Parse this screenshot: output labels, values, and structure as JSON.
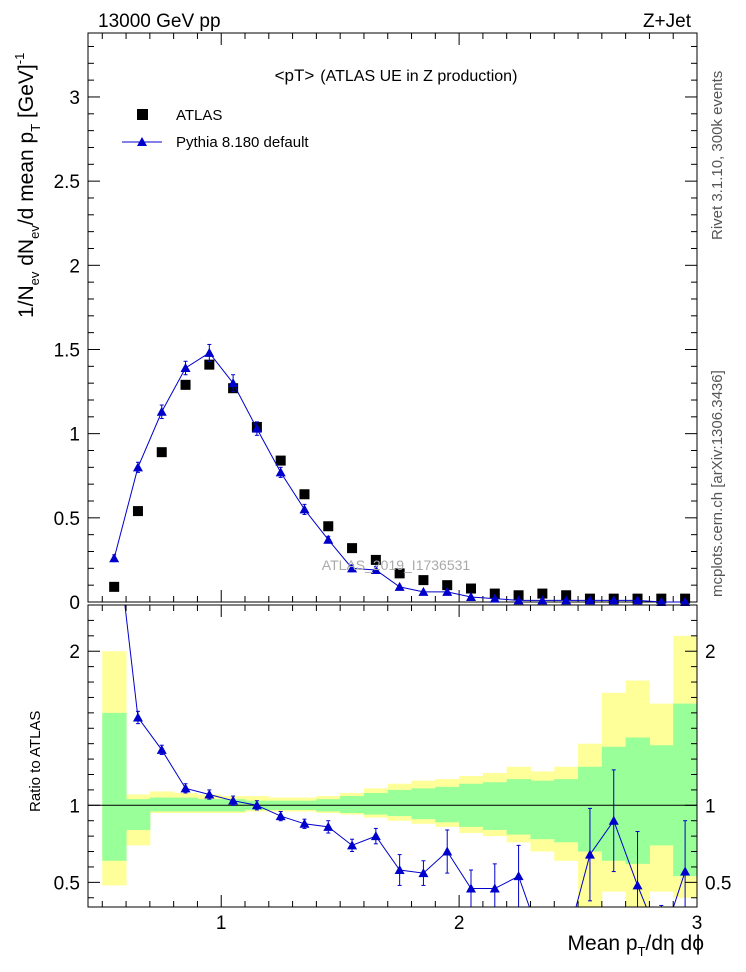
{
  "header": {
    "left": "13000 GeV pp",
    "right": "Z+Jet",
    "rivet_note": "Rivet 3.1.10,  300k events",
    "mcplots_note": "mcplots.cern.ch [arXiv:1306.3436]"
  },
  "watermark": "ATLAS_2019_I1736531",
  "colors": {
    "data": "#000000",
    "mc": "#0000cc",
    "band_outer": "#ffff99",
    "band_inner": "#99ff99"
  },
  "chart_data": [
    {
      "type": "scatter",
      "panel": "main",
      "title": "<pT>",
      "subtitle": "(ATLAS UE in Z production)",
      "ylabel_parts": {
        "a": "1/N",
        "b": "ev",
        "c": " dN",
        "d": "ev",
        "e": "/d mean p",
        "f": "T",
        "g": " [GeV]",
        "h": "-1"
      },
      "xlim": [
        0.44,
        3.0
      ],
      "ylim": [
        0,
        3.38
      ],
      "yticks": [
        0,
        0.5,
        1,
        1.5,
        2,
        2.5,
        3
      ],
      "ytick_labels": [
        "0",
        "0.5",
        "1",
        "1.5",
        "2",
        "2.5",
        "3"
      ],
      "legend_position": "top-left",
      "series": [
        {
          "name": "ATLAS",
          "marker": "square",
          "x": [
            0.55,
            0.65,
            0.75,
            0.85,
            0.95,
            1.05,
            1.15,
            1.25,
            1.35,
            1.45,
            1.55,
            1.65,
            1.75,
            1.85,
            1.95,
            2.05,
            2.15,
            2.25,
            2.35,
            2.45,
            2.55,
            2.65,
            2.75,
            2.85,
            2.95
          ],
          "y": [
            0.09,
            0.54,
            0.89,
            1.29,
            1.41,
            1.27,
            1.04,
            0.84,
            0.64,
            0.45,
            0.32,
            0.25,
            0.17,
            0.13,
            0.1,
            0.08,
            0.05,
            0.04,
            0.05,
            0.04,
            0.02,
            0.02,
            0.02,
            0.02,
            0.02
          ]
        },
        {
          "name": "Pythia 8.180 default",
          "marker": "triangle",
          "x": [
            0.55,
            0.65,
            0.75,
            0.85,
            0.95,
            1.05,
            1.15,
            1.25,
            1.35,
            1.45,
            1.55,
            1.65,
            1.75,
            1.85,
            1.95,
            2.05,
            2.15,
            2.25,
            2.35,
            2.45,
            2.55,
            2.65,
            2.75,
            2.85,
            2.95
          ],
          "y": [
            0.26,
            0.8,
            1.13,
            1.39,
            1.48,
            1.3,
            1.03,
            0.77,
            0.55,
            0.37,
            0.2,
            0.19,
            0.09,
            0.06,
            0.06,
            0.03,
            0.02,
            0.01,
            0.01,
            0.01,
            0.01,
            0.01,
            0.01,
            0.0,
            0.0
          ],
          "yerr": [
            0.02,
            0.03,
            0.04,
            0.04,
            0.05,
            0.05,
            0.04,
            0.03,
            0.03,
            0.02,
            0.02,
            0.02,
            0.01,
            0.01,
            0.01,
            0.01,
            0.01,
            0.01,
            0.01,
            0.01,
            0.01,
            0.01,
            0.01,
            0.01,
            0.01
          ]
        }
      ]
    },
    {
      "type": "line",
      "panel": "ratio",
      "ylabel": "Ratio to ATLAS",
      "xlabel_parts": {
        "a": "Mean p",
        "b": "T",
        "c": "/dη dϕ"
      },
      "xlim": [
        0.44,
        3.0
      ],
      "ylim": [
        0.34,
        2.3
      ],
      "xticks": [
        1,
        2,
        3
      ],
      "xtick_labels": [
        "1",
        "2",
        "3"
      ],
      "yticks": [
        0.5,
        1,
        2
      ],
      "ytick_labels": [
        "0.5",
        "1",
        "2"
      ],
      "reference": 1.0,
      "bins": [
        0.5,
        0.6,
        0.7,
        0.8,
        0.9,
        1.0,
        1.1,
        1.2,
        1.3,
        1.4,
        1.5,
        1.6,
        1.7,
        1.8,
        1.9,
        2.0,
        2.1,
        2.2,
        2.3,
        2.4,
        2.5,
        2.6,
        2.7,
        2.8,
        2.9,
        3.0
      ],
      "band_outer_lo": [
        0.48,
        0.74,
        0.95,
        0.95,
        0.95,
        0.95,
        0.96,
        0.96,
        0.96,
        0.95,
        0.94,
        0.92,
        0.9,
        0.88,
        0.86,
        0.82,
        0.8,
        0.76,
        0.7,
        0.64,
        0.34,
        0.44,
        0.34,
        0.44,
        0.4
      ],
      "band_outer_hi": [
        2.0,
        1.07,
        1.09,
        1.08,
        1.07,
        1.06,
        1.06,
        1.05,
        1.05,
        1.06,
        1.08,
        1.11,
        1.14,
        1.16,
        1.17,
        1.19,
        1.21,
        1.25,
        1.22,
        1.25,
        1.4,
        1.73,
        1.81,
        1.66,
        2.1
      ],
      "band_inner_lo": [
        0.64,
        0.84,
        0.96,
        0.96,
        0.96,
        0.96,
        0.97,
        0.97,
        0.97,
        0.96,
        0.95,
        0.94,
        0.93,
        0.91,
        0.89,
        0.86,
        0.84,
        0.81,
        0.78,
        0.76,
        0.7,
        0.64,
        0.62,
        0.74,
        0.54
      ],
      "band_inner_hi": [
        1.6,
        1.04,
        1.05,
        1.05,
        1.04,
        1.04,
        1.03,
        1.03,
        1.03,
        1.04,
        1.06,
        1.08,
        1.1,
        1.11,
        1.12,
        1.14,
        1.15,
        1.17,
        1.16,
        1.17,
        1.25,
        1.38,
        1.44,
        1.39,
        1.66
      ],
      "series": [
        {
          "name": "Pythia 8.180 default",
          "x": [
            0.55,
            0.65,
            0.75,
            0.85,
            0.95,
            1.05,
            1.15,
            1.25,
            1.35,
            1.45,
            1.55,
            1.65,
            1.75,
            1.85,
            1.95,
            2.05,
            2.15,
            2.25,
            2.35,
            2.45,
            2.55,
            2.65,
            2.75,
            2.85,
            2.95
          ],
          "y": [
            2.9,
            1.57,
            1.36,
            1.11,
            1.07,
            1.03,
            1.0,
            0.93,
            0.88,
            0.86,
            0.74,
            0.8,
            0.58,
            0.56,
            0.7,
            0.46,
            0.46,
            0.54,
            0.1,
            0.1,
            0.68,
            0.9,
            0.48,
            0.1,
            0.57
          ],
          "yerr": [
            0.06,
            0.04,
            0.03,
            0.03,
            0.03,
            0.03,
            0.03,
            0.03,
            0.03,
            0.04,
            0.04,
            0.05,
            0.1,
            0.08,
            0.14,
            0.12,
            0.16,
            0.2,
            0.2,
            0.2,
            0.3,
            0.33,
            0.35,
            0.25,
            0.33
          ]
        }
      ]
    }
  ]
}
